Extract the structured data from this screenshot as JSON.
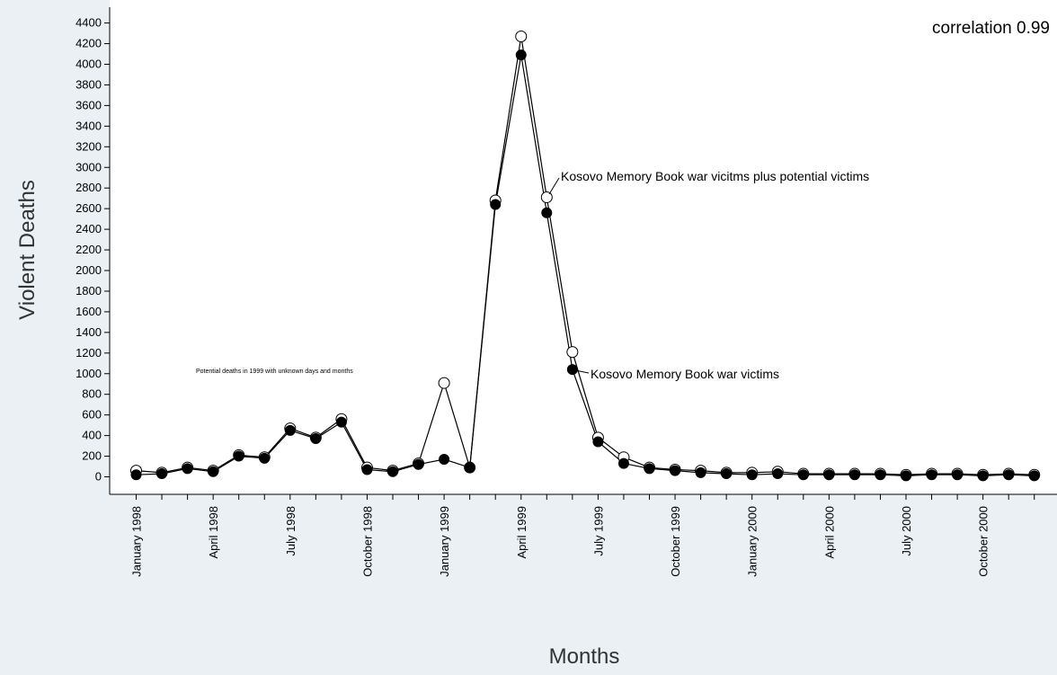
{
  "chart_data": {
    "type": "line",
    "xlabel": "Months",
    "ylabel": "Violent Deaths",
    "ylim": [
      0,
      4400
    ],
    "y_ticks": [
      0,
      200,
      400,
      600,
      800,
      1000,
      1200,
      1400,
      1600,
      1800,
      2000,
      2200,
      2400,
      2600,
      2800,
      3000,
      3200,
      3400,
      3600,
      3800,
      4000,
      4200,
      4400
    ],
    "categories": [
      "January 1998",
      "February 1998",
      "March 1998",
      "April 1998",
      "May 1998",
      "June 1998",
      "July 1998",
      "August 1998",
      "September 1998",
      "October 1998",
      "November 1998",
      "December 1998",
      "January 1999",
      "February 1999",
      "March 1999",
      "April 1999",
      "May 1999",
      "June 1999",
      "July 1999",
      "August 1999",
      "September 1999",
      "October 1999",
      "November 1999",
      "December 1999",
      "January 2000",
      "February 2000",
      "March 2000",
      "April 2000",
      "May 2000",
      "June 2000",
      "July 2000",
      "August 2000",
      "September 2000",
      "October 2000",
      "November 2000",
      "December 2000"
    ],
    "x_tick_labels": [
      "January 1998",
      "April 1998",
      "July 1998",
      "October 1998",
      "January 1999",
      "April 1999",
      "July 1999",
      "October 1999",
      "January 2000",
      "April 2000",
      "July 2000",
      "October 2000"
    ],
    "series": [
      {
        "name": "Kosovo Memory Book war vicitms plus potential victims",
        "marker": "open-circle",
        "values": [
          60,
          40,
          90,
          60,
          210,
          190,
          470,
          380,
          560,
          90,
          60,
          130,
          910,
          90,
          2680,
          4270,
          2710,
          1210,
          380,
          190,
          90,
          70,
          60,
          40,
          40,
          50,
          30,
          30,
          30,
          30,
          20,
          30,
          30,
          20,
          30,
          20
        ]
      },
      {
        "name": "Kosovo Memory Book war victims",
        "marker": "filled-circle",
        "values": [
          20,
          30,
          80,
          50,
          200,
          180,
          450,
          370,
          530,
          70,
          50,
          120,
          170,
          90,
          2640,
          4090,
          2560,
          1040,
          340,
          130,
          80,
          60,
          40,
          30,
          20,
          30,
          20,
          20,
          20,
          20,
          10,
          20,
          20,
          10,
          20,
          10
        ]
      }
    ],
    "annotations": {
      "correlation": "correlation 0.99",
      "potential_note": "Potential deaths in 1999 with unknown days and months"
    },
    "grid": false
  }
}
